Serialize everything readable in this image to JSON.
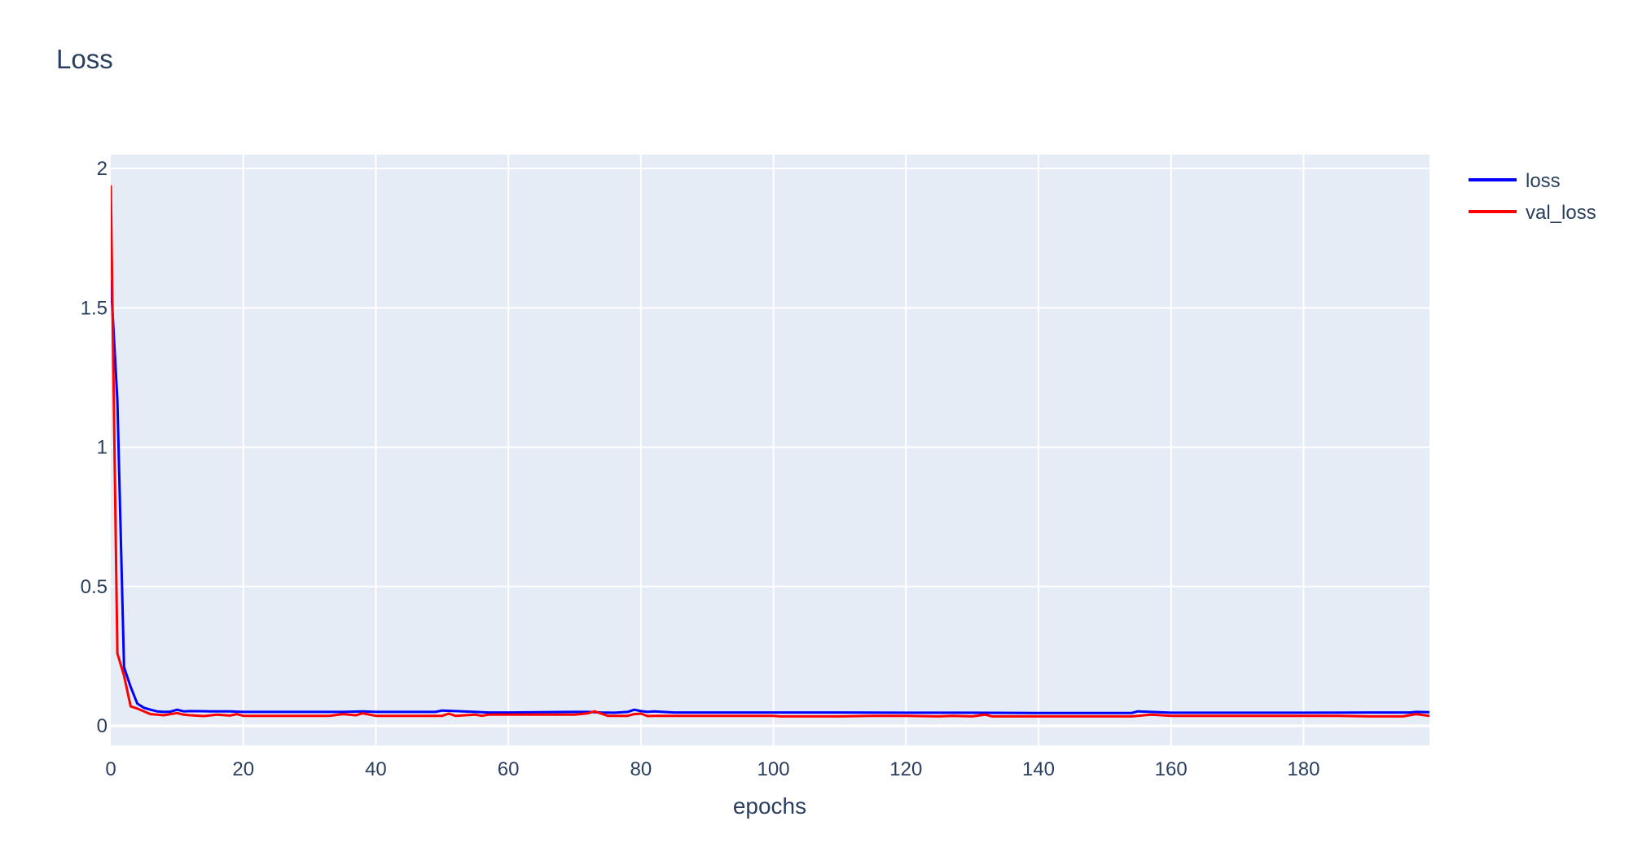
{
  "chart_data": {
    "type": "line",
    "title": "Loss",
    "xlabel": "epochs",
    "ylabel": "",
    "xlim": [
      0,
      199
    ],
    "ylim": [
      -0.07,
      2.05
    ],
    "x_ticks": [
      0,
      20,
      40,
      60,
      80,
      100,
      120,
      140,
      160,
      180
    ],
    "x_tick_labels": [
      "0",
      "20",
      "40",
      "60",
      "80",
      "100",
      "120",
      "140",
      "160",
      "180"
    ],
    "y_ticks": [
      0,
      0.5,
      1,
      1.5,
      2
    ],
    "y_tick_labels": [
      "0",
      "0.5",
      "1",
      "1.5",
      "2"
    ],
    "grid": true,
    "legend_position": "top-right",
    "plot_background": "#e5ecf6",
    "series": [
      {
        "name": "loss",
        "color": "#0000ff",
        "x": [
          0,
          1,
          2,
          3,
          4,
          5,
          6,
          7,
          8,
          9,
          10,
          11,
          12,
          15,
          18,
          20,
          25,
          30,
          35,
          38,
          40,
          45,
          49,
          50,
          52,
          55,
          57,
          60,
          65,
          70,
          72,
          74,
          76,
          78,
          79,
          80,
          81,
          82,
          85,
          90,
          100,
          110,
          120,
          130,
          140,
          150,
          154,
          155,
          157,
          160,
          165,
          170,
          180,
          190,
          196,
          197,
          199
        ],
        "y": [
          1.6,
          1.17,
          0.21,
          0.14,
          0.08,
          0.065,
          0.058,
          0.052,
          0.05,
          0.051,
          0.058,
          0.052,
          0.053,
          0.052,
          0.052,
          0.05,
          0.05,
          0.05,
          0.05,
          0.052,
          0.05,
          0.05,
          0.05,
          0.055,
          0.053,
          0.05,
          0.048,
          0.048,
          0.049,
          0.05,
          0.05,
          0.048,
          0.047,
          0.05,
          0.058,
          0.053,
          0.05,
          0.052,
          0.048,
          0.048,
          0.048,
          0.048,
          0.047,
          0.047,
          0.046,
          0.046,
          0.046,
          0.052,
          0.05,
          0.047,
          0.047,
          0.047,
          0.047,
          0.048,
          0.048,
          0.05,
          0.049
        ]
      },
      {
        "name": "val_loss",
        "color": "#ff0000",
        "x": [
          0,
          1,
          2,
          3,
          4,
          5,
          6,
          7,
          8,
          9,
          10,
          11,
          12,
          14,
          16,
          18,
          19,
          20,
          25,
          30,
          33,
          35,
          37,
          38,
          40,
          45,
          50,
          51,
          52,
          55,
          56,
          57,
          60,
          65,
          70,
          72,
          73,
          75,
          78,
          79,
          80,
          81,
          82,
          85,
          90,
          95,
          100,
          101,
          110,
          115,
          120,
          125,
          127,
          130,
          132,
          133,
          140,
          150,
          154,
          155,
          157,
          160,
          165,
          170,
          180,
          185,
          190,
          195,
          196,
          197,
          199
        ],
        "y": [
          1.94,
          0.26,
          0.18,
          0.07,
          0.062,
          0.052,
          0.042,
          0.04,
          0.038,
          0.042,
          0.046,
          0.04,
          0.038,
          0.035,
          0.04,
          0.037,
          0.042,
          0.036,
          0.036,
          0.036,
          0.036,
          0.042,
          0.038,
          0.045,
          0.036,
          0.036,
          0.036,
          0.044,
          0.036,
          0.04,
          0.036,
          0.04,
          0.04,
          0.04,
          0.04,
          0.045,
          0.052,
          0.036,
          0.036,
          0.042,
          0.044,
          0.035,
          0.036,
          0.036,
          0.036,
          0.036,
          0.036,
          0.034,
          0.034,
          0.036,
          0.036,
          0.034,
          0.036,
          0.034,
          0.04,
          0.034,
          0.034,
          0.034,
          0.034,
          0.036,
          0.04,
          0.036,
          0.036,
          0.036,
          0.036,
          0.036,
          0.034,
          0.034,
          0.038,
          0.042,
          0.036
        ]
      }
    ]
  }
}
